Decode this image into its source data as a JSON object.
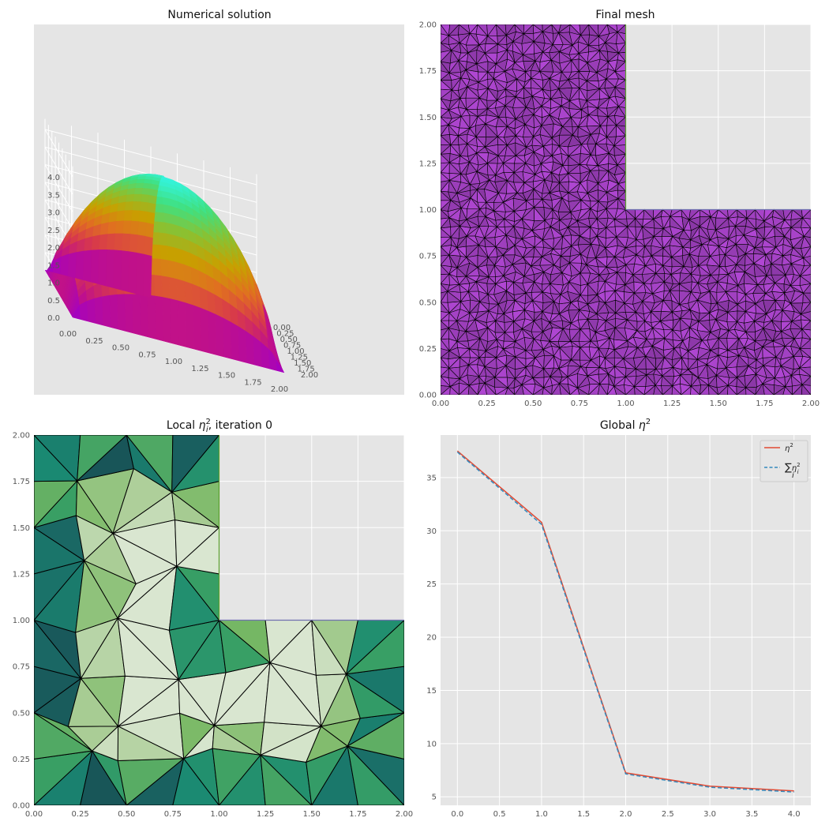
{
  "colors": {
    "axes_bg": "#e5e5e5",
    "grid": "#ffffff",
    "eta_line": "#e24a33",
    "sum_line": "#348abd",
    "mesh_edge": "#000000",
    "boundary_top": "#7070b0",
    "boundary_left_inner": "#5aa02c"
  },
  "chart_data": [
    {
      "type": "surface",
      "title": "Numerical solution",
      "x_ticks": [
        "0.00",
        "0.25",
        "0.50",
        "0.75",
        "1.00",
        "1.25",
        "1.50",
        "1.75",
        "2.00"
      ],
      "y_ticks": [
        "0.00",
        "0.25",
        "0.50",
        "0.75",
        "1.00",
        "1.25",
        "1.50",
        "1.75",
        "2.00"
      ],
      "z_ticks": [
        "0.0",
        "0.5",
        "1.0",
        "1.5",
        "2.0",
        "2.5",
        "3.0",
        "3.5",
        "4.0"
      ],
      "zlim": [
        0,
        4.2
      ],
      "colormap": [
        "#a000c8",
        "#c0108a",
        "#d83a4a",
        "#e07020",
        "#c8a000",
        "#8cc030",
        "#40e080",
        "#30f8f0"
      ]
    },
    {
      "type": "mesh",
      "title": "Final mesh",
      "x_ticks": [
        "0.00",
        "0.25",
        "0.50",
        "0.75",
        "1.00",
        "1.25",
        "1.50",
        "1.75",
        "2.00"
      ],
      "y_ticks": [
        "0.00",
        "0.25",
        "0.50",
        "0.75",
        "1.00",
        "1.25",
        "1.50",
        "1.75",
        "2.00"
      ],
      "xlim": [
        0,
        2
      ],
      "ylim": [
        0,
        2
      ],
      "domain": "L-shape",
      "fill_color": "#a040c0"
    },
    {
      "type": "mesh",
      "title_prefix": "Local ",
      "title_symbol": "η",
      "title_sub": "i",
      "title_sup": "2",
      "title_suffix": ", iteration 0",
      "x_ticks": [
        "0.00",
        "0.25",
        "0.50",
        "0.75",
        "1.00",
        "1.25",
        "1.50",
        "1.75",
        "2.00"
      ],
      "y_ticks": [
        "0.00",
        "0.25",
        "0.50",
        "0.75",
        "1.00",
        "1.25",
        "1.50",
        "1.75",
        "2.00"
      ],
      "xlim": [
        0,
        2
      ],
      "ylim": [
        0,
        2
      ],
      "colormap": [
        "#d9e6d0",
        "#aacd96",
        "#78b864",
        "#3aa064",
        "#1a8a72",
        "#1a6a66",
        "#17484f"
      ]
    },
    {
      "type": "line",
      "title_prefix": "Global ",
      "title_symbol": "η",
      "title_sup": "2",
      "x": [
        0,
        1,
        2,
        3,
        4
      ],
      "series": [
        {
          "name": "η²",
          "values": [
            37.5,
            30.8,
            7.25,
            6.0,
            5.55
          ],
          "color": "#e24a33",
          "style": "solid"
        },
        {
          "name": "∑ᵢηᵢ²",
          "values": [
            37.4,
            30.6,
            7.15,
            5.9,
            5.45
          ],
          "color": "#348abd",
          "style": "dashed"
        }
      ],
      "xlim": [
        -0.2,
        4.2
      ],
      "ylim": [
        4.2,
        39.0
      ],
      "x_ticks": [
        "0.0",
        "0.5",
        "1.0",
        "1.5",
        "2.0",
        "2.5",
        "3.0",
        "3.5",
        "4.0"
      ],
      "y_ticks": [
        "5",
        "10",
        "15",
        "20",
        "25",
        "30",
        "35"
      ],
      "legend_position": "top-right",
      "legend_labels": {
        "eta_base": "η",
        "eta_sup": "2",
        "sum_symbol": "∑",
        "sum_sub_under": "i",
        "sum_base": "η",
        "sum_sub": "i",
        "sum_sup": "2"
      }
    }
  ]
}
